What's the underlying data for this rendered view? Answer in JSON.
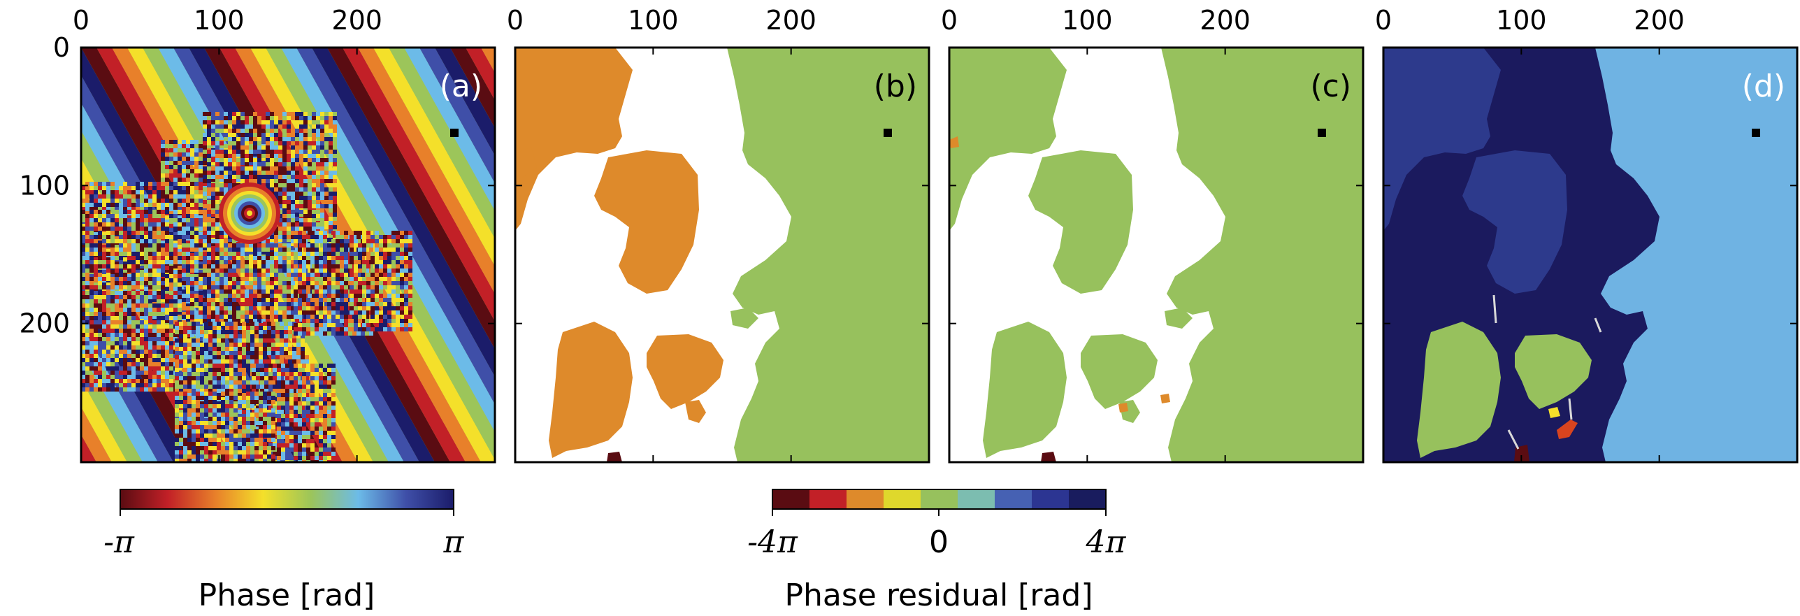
{
  "chart_data": [
    {
      "type": "heatmap",
      "panel_label": "(a)",
      "label_color": "#ffffff",
      "xticks": [
        "0",
        "100",
        "200"
      ],
      "yticks": [
        "0",
        "100",
        "200"
      ],
      "xlim": [
        0,
        300
      ],
      "ylim": [
        300,
        0
      ],
      "reference_point": [
        270,
        60
      ]
    },
    {
      "type": "heatmap",
      "panel_label": "(b)",
      "label_color": "#000000",
      "xticks": [
        "0",
        "100",
        "200"
      ],
      "xlim": [
        0,
        300
      ],
      "ylim": [
        300,
        0
      ],
      "reference_point": [
        270,
        60
      ]
    },
    {
      "type": "heatmap",
      "panel_label": "(c)",
      "label_color": "#000000",
      "xticks": [
        "0",
        "100",
        "200"
      ],
      "xlim": [
        0,
        300
      ],
      "ylim": [
        300,
        0
      ],
      "reference_point": [
        270,
        60
      ]
    },
    {
      "type": "heatmap",
      "panel_label": "(d)",
      "label_color": "#ffffff",
      "xticks": [
        "0",
        "100",
        "200"
      ],
      "xlim": [
        0,
        300
      ],
      "ylim": [
        300,
        0
      ],
      "reference_point": [
        270,
        60
      ]
    }
  ],
  "colorbars": {
    "phase": {
      "label": "Phase [rad]",
      "min_label": "-π",
      "max_label": "π",
      "colors": [
        "#5a0c12",
        "#c22027",
        "#e8802a",
        "#f4e02a",
        "#9cc55a",
        "#6cbbe8",
        "#3f4fa8",
        "#1b1c6a"
      ]
    },
    "residual": {
      "label": "Phase residual [rad]",
      "min_label": "-4π",
      "mid_label": "0",
      "max_label": "4π",
      "colors": [
        "#5a0c12",
        "#c22027",
        "#de8a2b",
        "#dfd82c",
        "#97c15d",
        "#7cbdb0",
        "#4661b3",
        "#2c3592",
        "#191c5e"
      ]
    }
  },
  "colors": {
    "orange": "#de8a2b",
    "green": "#97c15d",
    "light_blue": "#6fb3e3",
    "navy": "#1b1a5e",
    "mid_blue": "#2d3a8c",
    "dark_red": "#5a0c12",
    "red": "#d8441f",
    "yellow": "#f4e02a"
  }
}
